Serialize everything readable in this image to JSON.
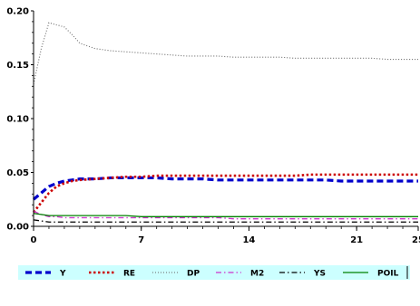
{
  "chart_data": {
    "type": "line",
    "title": "",
    "xlabel": "",
    "ylabel": "",
    "xlim": [
      0,
      25
    ],
    "ylim": [
      0,
      0.2
    ],
    "xticks": [
      0,
      7,
      14,
      21,
      25
    ],
    "xtick_labels": [
      "0",
      "7",
      "14",
      "21",
      "25"
    ],
    "yticks": [
      0,
      0.05,
      0.1,
      0.15,
      0.2
    ],
    "ytick_labels": [
      "0.00",
      "0.05",
      "0.10",
      "0.15",
      "0.20"
    ],
    "grid": false,
    "legend_position": "bottom",
    "x": [
      0,
      0.5,
      1,
      1.5,
      2,
      2.5,
      3,
      4,
      5,
      6,
      7,
      8,
      9,
      10,
      11,
      12,
      13,
      14,
      15,
      16,
      17,
      18,
      19,
      20,
      21,
      22,
      23,
      24,
      25
    ],
    "series": [
      {
        "name": "Y",
        "color": "#0000cc",
        "style": "dashed-thick",
        "values": [
          0.025,
          0.031,
          0.037,
          0.04,
          0.042,
          0.043,
          0.044,
          0.044,
          0.045,
          0.045,
          0.045,
          0.045,
          0.044,
          0.044,
          0.044,
          0.043,
          0.043,
          0.043,
          0.043,
          0.043,
          0.043,
          0.043,
          0.043,
          0.042,
          0.042,
          0.042,
          0.042,
          0.042,
          0.042
        ]
      },
      {
        "name": "RE",
        "color": "#cc0000",
        "style": "dotted-thick",
        "values": [
          0.013,
          0.022,
          0.031,
          0.037,
          0.04,
          0.042,
          0.043,
          0.044,
          0.045,
          0.046,
          0.046,
          0.047,
          0.047,
          0.047,
          0.047,
          0.047,
          0.047,
          0.047,
          0.047,
          0.047,
          0.047,
          0.048,
          0.048,
          0.048,
          0.048,
          0.048,
          0.048,
          0.048,
          0.048
        ]
      },
      {
        "name": "DP",
        "color": "#666666",
        "style": "fine-dotted",
        "values": [
          0.132,
          0.165,
          0.189,
          0.187,
          0.185,
          0.178,
          0.17,
          0.165,
          0.163,
          0.162,
          0.161,
          0.16,
          0.159,
          0.158,
          0.158,
          0.158,
          0.157,
          0.157,
          0.157,
          0.157,
          0.156,
          0.156,
          0.156,
          0.156,
          0.156,
          0.156,
          0.155,
          0.155,
          0.155
        ]
      },
      {
        "name": "M2",
        "color": "#cc33cc",
        "style": "dash-dot",
        "values": [
          0.014,
          0.011,
          0.009,
          0.009,
          0.008,
          0.008,
          0.008,
          0.008,
          0.008,
          0.008,
          0.008,
          0.008,
          0.008,
          0.008,
          0.008,
          0.008,
          0.007,
          0.007,
          0.007,
          0.007,
          0.007,
          0.007,
          0.007,
          0.007,
          0.007,
          0.007,
          0.007,
          0.007,
          0.007
        ]
      },
      {
        "name": "YS",
        "color": "#000000",
        "style": "dash-dot",
        "values": [
          0.006,
          0.005,
          0.004,
          0.004,
          0.004,
          0.004,
          0.004,
          0.004,
          0.004,
          0.004,
          0.004,
          0.004,
          0.004,
          0.004,
          0.004,
          0.004,
          0.004,
          0.004,
          0.004,
          0.004,
          0.004,
          0.004,
          0.004,
          0.004,
          0.004,
          0.004,
          0.004,
          0.004,
          0.004
        ]
      },
      {
        "name": "POIL",
        "color": "#008000",
        "style": "solid",
        "values": [
          0.012,
          0.011,
          0.01,
          0.01,
          0.01,
          0.01,
          0.01,
          0.01,
          0.01,
          0.01,
          0.009,
          0.009,
          0.009,
          0.009,
          0.009,
          0.009,
          0.009,
          0.009,
          0.009,
          0.009,
          0.009,
          0.009,
          0.009,
          0.009,
          0.009,
          0.009,
          0.009,
          0.009,
          0.009
        ]
      }
    ]
  },
  "colors": {
    "legend_background": "#ccffff",
    "axis": "#000000"
  }
}
